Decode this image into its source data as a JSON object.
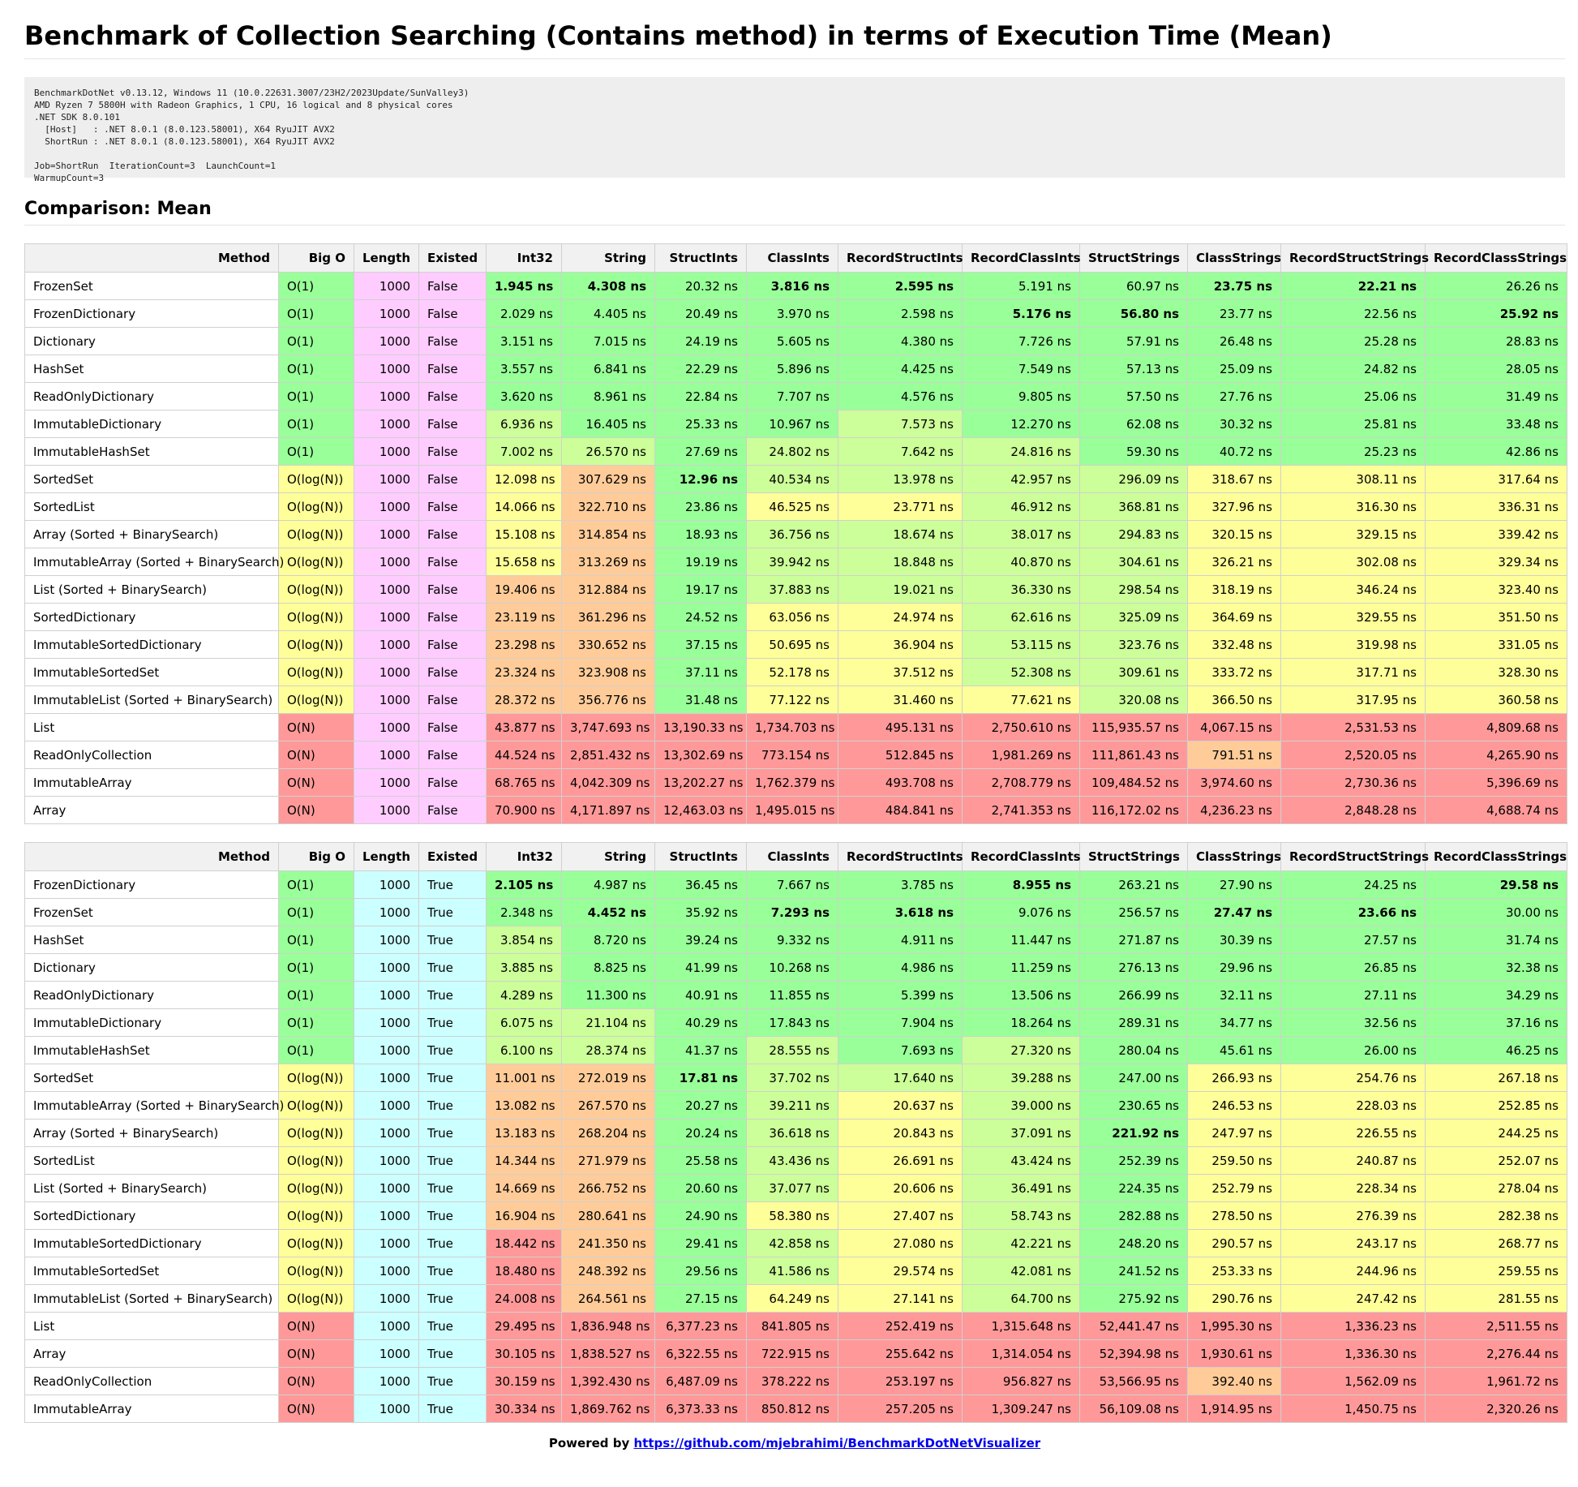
{
  "title": "Benchmark of Collection Searching (Contains method) in terms of Execution Time (Mean)",
  "environment": "BenchmarkDotNet v0.13.12, Windows 11 (10.0.22631.3007/23H2/2023Update/SunValley3)\nAMD Ryzen 7 5800H with Radeon Graphics, 1 CPU, 16 logical and 8 physical cores\n.NET SDK 8.0.101\n  [Host]   : .NET 8.0.1 (8.0.123.58001), X64 RyuJIT AVX2\n  ShortRun : .NET 8.0.1 (8.0.123.58001), X64 RyuJIT AVX2\n\nJob=ShortRun  IterationCount=3  LaunchCount=1\nWarmupCount=3",
  "comparison_heading": "Comparison: Mean",
  "columns": [
    "Method",
    "Big O",
    "Length",
    "Existed",
    "Int32",
    "String",
    "StructInts",
    "ClassInts",
    "RecordStructInts",
    "RecordClassInts",
    "StructStrings",
    "ClassStrings",
    "RecordStructStrings",
    "RecordClassStrings"
  ],
  "colors": {
    "bigo": {
      "O(1)": "#99ff99",
      "O(log(N))": "#ffff99",
      "O(N)": "#ff9999"
    },
    "existed": {
      "False": "#ffccff",
      "True": "#ccffff"
    },
    "length": {
      "False": "#ffccff",
      "True": "#ccffff"
    },
    "scale": [
      "#99ff99",
      "#ccff99",
      "#ffff99",
      "#ffcc99",
      "#ff9999"
    ]
  },
  "footer": {
    "prefix": "Powered by ",
    "link": "https://github.com/mjebrahimi/BenchmarkDotNetVisualizer"
  },
  "tables": [
    {
      "existed": "False",
      "rows": [
        {
          "method": "FrozenSet",
          "bigo": "O(1)",
          "length": "1000",
          "existed": "False",
          "values": [
            "1.945 ns",
            "4.308 ns",
            "20.32 ns",
            "3.816 ns",
            "2.595 ns",
            "5.191 ns",
            "60.97 ns",
            "23.75 ns",
            "22.21 ns",
            "26.26 ns"
          ],
          "best": [
            0,
            1,
            3,
            4,
            7,
            8
          ]
        },
        {
          "method": "FrozenDictionary",
          "bigo": "O(1)",
          "length": "1000",
          "existed": "False",
          "values": [
            "2.029 ns",
            "4.405 ns",
            "20.49 ns",
            "3.970 ns",
            "2.598 ns",
            "5.176 ns",
            "56.80 ns",
            "23.77 ns",
            "22.56 ns",
            "25.92 ns"
          ],
          "best": [
            5,
            6,
            9
          ]
        },
        {
          "method": "Dictionary",
          "bigo": "O(1)",
          "length": "1000",
          "existed": "False",
          "values": [
            "3.151 ns",
            "7.015 ns",
            "24.19 ns",
            "5.605 ns",
            "4.380 ns",
            "7.726 ns",
            "57.91 ns",
            "26.48 ns",
            "25.28 ns",
            "28.83 ns"
          ],
          "best": []
        },
        {
          "method": "HashSet",
          "bigo": "O(1)",
          "length": "1000",
          "existed": "False",
          "values": [
            "3.557 ns",
            "6.841 ns",
            "22.29 ns",
            "5.896 ns",
            "4.425 ns",
            "7.549 ns",
            "57.13 ns",
            "25.09 ns",
            "24.82 ns",
            "28.05 ns"
          ],
          "best": []
        },
        {
          "method": "ReadOnlyDictionary",
          "bigo": "O(1)",
          "length": "1000",
          "existed": "False",
          "values": [
            "3.620 ns",
            "8.961 ns",
            "22.84 ns",
            "7.707 ns",
            "4.576 ns",
            "9.805 ns",
            "57.50 ns",
            "27.76 ns",
            "25.06 ns",
            "31.49 ns"
          ],
          "best": []
        },
        {
          "method": "ImmutableDictionary",
          "bigo": "O(1)",
          "length": "1000",
          "existed": "False",
          "values": [
            "6.936 ns",
            "16.405 ns",
            "25.33 ns",
            "10.967 ns",
            "7.573 ns",
            "12.270 ns",
            "62.08 ns",
            "30.32 ns",
            "25.81 ns",
            "33.48 ns"
          ],
          "best": []
        },
        {
          "method": "ImmutableHashSet",
          "bigo": "O(1)",
          "length": "1000",
          "existed": "False",
          "values": [
            "7.002 ns",
            "26.570 ns",
            "27.69 ns",
            "24.802 ns",
            "7.642 ns",
            "24.816 ns",
            "59.30 ns",
            "40.72 ns",
            "25.23 ns",
            "42.86 ns"
          ],
          "best": []
        },
        {
          "method": "SortedSet",
          "bigo": "O(log(N))",
          "length": "1000",
          "existed": "False",
          "values": [
            "12.098 ns",
            "307.629 ns",
            "12.96 ns",
            "40.534 ns",
            "13.978 ns",
            "42.957 ns",
            "296.09 ns",
            "318.67 ns",
            "308.11 ns",
            "317.64 ns"
          ],
          "best": [
            2
          ]
        },
        {
          "method": "SortedList",
          "bigo": "O(log(N))",
          "length": "1000",
          "existed": "False",
          "values": [
            "14.066 ns",
            "322.710 ns",
            "23.86 ns",
            "46.525 ns",
            "23.771 ns",
            "46.912 ns",
            "368.81 ns",
            "327.96 ns",
            "316.30 ns",
            "336.31 ns"
          ],
          "best": []
        },
        {
          "method": "Array (Sorted + BinarySearch)",
          "bigo": "O(log(N))",
          "length": "1000",
          "existed": "False",
          "values": [
            "15.108 ns",
            "314.854 ns",
            "18.93 ns",
            "36.756 ns",
            "18.674 ns",
            "38.017 ns",
            "294.83 ns",
            "320.15 ns",
            "329.15 ns",
            "339.42 ns"
          ],
          "best": []
        },
        {
          "method": "ImmutableArray (Sorted + BinarySearch)",
          "bigo": "O(log(N))",
          "length": "1000",
          "existed": "False",
          "values": [
            "15.658 ns",
            "313.269 ns",
            "19.19 ns",
            "39.942 ns",
            "18.848 ns",
            "40.870 ns",
            "304.61 ns",
            "326.21 ns",
            "302.08 ns",
            "329.34 ns"
          ],
          "best": []
        },
        {
          "method": "List (Sorted + BinarySearch)",
          "bigo": "O(log(N))",
          "length": "1000",
          "existed": "False",
          "values": [
            "19.406 ns",
            "312.884 ns",
            "19.17 ns",
            "37.883 ns",
            "19.021 ns",
            "36.330 ns",
            "298.54 ns",
            "318.19 ns",
            "346.24 ns",
            "323.40 ns"
          ],
          "best": []
        },
        {
          "method": "SortedDictionary",
          "bigo": "O(log(N))",
          "length": "1000",
          "existed": "False",
          "values": [
            "23.119 ns",
            "361.296 ns",
            "24.52 ns",
            "63.056 ns",
            "24.974 ns",
            "62.616 ns",
            "325.09 ns",
            "364.69 ns",
            "329.55 ns",
            "351.50 ns"
          ],
          "best": []
        },
        {
          "method": "ImmutableSortedDictionary",
          "bigo": "O(log(N))",
          "length": "1000",
          "existed": "False",
          "values": [
            "23.298 ns",
            "330.652 ns",
            "37.15 ns",
            "50.695 ns",
            "36.904 ns",
            "53.115 ns",
            "323.76 ns",
            "332.48 ns",
            "319.98 ns",
            "331.05 ns"
          ],
          "best": []
        },
        {
          "method": "ImmutableSortedSet",
          "bigo": "O(log(N))",
          "length": "1000",
          "existed": "False",
          "values": [
            "23.324 ns",
            "323.908 ns",
            "37.11 ns",
            "52.178 ns",
            "37.512 ns",
            "52.308 ns",
            "309.61 ns",
            "333.72 ns",
            "317.71 ns",
            "328.30 ns"
          ],
          "best": []
        },
        {
          "method": "ImmutableList (Sorted + BinarySearch)",
          "bigo": "O(log(N))",
          "length": "1000",
          "existed": "False",
          "values": [
            "28.372 ns",
            "356.776 ns",
            "31.48 ns",
            "77.122 ns",
            "31.460 ns",
            "77.621 ns",
            "320.08 ns",
            "366.50 ns",
            "317.95 ns",
            "360.58 ns"
          ],
          "best": []
        },
        {
          "method": "List",
          "bigo": "O(N)",
          "length": "1000",
          "existed": "False",
          "values": [
            "43.877 ns",
            "3,747.693 ns",
            "13,190.33 ns",
            "1,734.703 ns",
            "495.131 ns",
            "2,750.610 ns",
            "115,935.57 ns",
            "4,067.15 ns",
            "2,531.53 ns",
            "4,809.68 ns"
          ],
          "best": []
        },
        {
          "method": "ReadOnlyCollection",
          "bigo": "O(N)",
          "length": "1000",
          "existed": "False",
          "values": [
            "44.524 ns",
            "2,851.432 ns",
            "13,302.69 ns",
            "773.154 ns",
            "512.845 ns",
            "1,981.269 ns",
            "111,861.43 ns",
            "791.51 ns",
            "2,520.05 ns",
            "4,265.90 ns"
          ],
          "best": []
        },
        {
          "method": "ImmutableArray",
          "bigo": "O(N)",
          "length": "1000",
          "existed": "False",
          "values": [
            "68.765 ns",
            "4,042.309 ns",
            "13,202.27 ns",
            "1,762.379 ns",
            "493.708 ns",
            "2,708.779 ns",
            "109,484.52 ns",
            "3,974.60 ns",
            "2,730.36 ns",
            "5,396.69 ns"
          ],
          "best": []
        },
        {
          "method": "Array",
          "bigo": "O(N)",
          "length": "1000",
          "existed": "False",
          "values": [
            "70.900 ns",
            "4,171.897 ns",
            "12,463.03 ns",
            "1,495.015 ns",
            "484.841 ns",
            "2,741.353 ns",
            "116,172.02 ns",
            "4,236.23 ns",
            "2,848.28 ns",
            "4,688.74 ns"
          ],
          "best": []
        }
      ]
    },
    {
      "existed": "True",
      "rows": [
        {
          "method": "FrozenDictionary",
          "bigo": "O(1)",
          "length": "1000",
          "existed": "True",
          "values": [
            "2.105 ns",
            "4.987 ns",
            "36.45 ns",
            "7.667 ns",
            "3.785 ns",
            "8.955 ns",
            "263.21 ns",
            "27.90 ns",
            "24.25 ns",
            "29.58 ns"
          ],
          "best": [
            0,
            5,
            9
          ]
        },
        {
          "method": "FrozenSet",
          "bigo": "O(1)",
          "length": "1000",
          "existed": "True",
          "values": [
            "2.348 ns",
            "4.452 ns",
            "35.92 ns",
            "7.293 ns",
            "3.618 ns",
            "9.076 ns",
            "256.57 ns",
            "27.47 ns",
            "23.66 ns",
            "30.00 ns"
          ],
          "best": [
            1,
            3,
            4,
            7,
            8
          ]
        },
        {
          "method": "HashSet",
          "bigo": "O(1)",
          "length": "1000",
          "existed": "True",
          "values": [
            "3.854 ns",
            "8.720 ns",
            "39.24 ns",
            "9.332 ns",
            "4.911 ns",
            "11.447 ns",
            "271.87 ns",
            "30.39 ns",
            "27.57 ns",
            "31.74 ns"
          ],
          "best": []
        },
        {
          "method": "Dictionary",
          "bigo": "O(1)",
          "length": "1000",
          "existed": "True",
          "values": [
            "3.885 ns",
            "8.825 ns",
            "41.99 ns",
            "10.268 ns",
            "4.986 ns",
            "11.259 ns",
            "276.13 ns",
            "29.96 ns",
            "26.85 ns",
            "32.38 ns"
          ],
          "best": []
        },
        {
          "method": "ReadOnlyDictionary",
          "bigo": "O(1)",
          "length": "1000",
          "existed": "True",
          "values": [
            "4.289 ns",
            "11.300 ns",
            "40.91 ns",
            "11.855 ns",
            "5.399 ns",
            "13.506 ns",
            "266.99 ns",
            "32.11 ns",
            "27.11 ns",
            "34.29 ns"
          ],
          "best": []
        },
        {
          "method": "ImmutableDictionary",
          "bigo": "O(1)",
          "length": "1000",
          "existed": "True",
          "values": [
            "6.075 ns",
            "21.104 ns",
            "40.29 ns",
            "17.843 ns",
            "7.904 ns",
            "18.264 ns",
            "289.31 ns",
            "34.77 ns",
            "32.56 ns",
            "37.16 ns"
          ],
          "best": []
        },
        {
          "method": "ImmutableHashSet",
          "bigo": "O(1)",
          "length": "1000",
          "existed": "True",
          "values": [
            "6.100 ns",
            "28.374 ns",
            "41.37 ns",
            "28.555 ns",
            "7.693 ns",
            "27.320 ns",
            "280.04 ns",
            "45.61 ns",
            "26.00 ns",
            "46.25 ns"
          ],
          "best": []
        },
        {
          "method": "SortedSet",
          "bigo": "O(log(N))",
          "length": "1000",
          "existed": "True",
          "values": [
            "11.001 ns",
            "272.019 ns",
            "17.81 ns",
            "37.702 ns",
            "17.640 ns",
            "39.288 ns",
            "247.00 ns",
            "266.93 ns",
            "254.76 ns",
            "267.18 ns"
          ],
          "best": [
            2
          ]
        },
        {
          "method": "ImmutableArray (Sorted + BinarySearch)",
          "bigo": "O(log(N))",
          "length": "1000",
          "existed": "True",
          "values": [
            "13.082 ns",
            "267.570 ns",
            "20.27 ns",
            "39.211 ns",
            "20.637 ns",
            "39.000 ns",
            "230.65 ns",
            "246.53 ns",
            "228.03 ns",
            "252.85 ns"
          ],
          "best": []
        },
        {
          "method": "Array (Sorted + BinarySearch)",
          "bigo": "O(log(N))",
          "length": "1000",
          "existed": "True",
          "values": [
            "13.183 ns",
            "268.204 ns",
            "20.24 ns",
            "36.618 ns",
            "20.843 ns",
            "37.091 ns",
            "221.92 ns",
            "247.97 ns",
            "226.55 ns",
            "244.25 ns"
          ],
          "best": [
            6
          ]
        },
        {
          "method": "SortedList",
          "bigo": "O(log(N))",
          "length": "1000",
          "existed": "True",
          "values": [
            "14.344 ns",
            "271.979 ns",
            "25.58 ns",
            "43.436 ns",
            "26.691 ns",
            "43.424 ns",
            "252.39 ns",
            "259.50 ns",
            "240.87 ns",
            "252.07 ns"
          ],
          "best": []
        },
        {
          "method": "List (Sorted + BinarySearch)",
          "bigo": "O(log(N))",
          "length": "1000",
          "existed": "True",
          "values": [
            "14.669 ns",
            "266.752 ns",
            "20.60 ns",
            "37.077 ns",
            "20.606 ns",
            "36.491 ns",
            "224.35 ns",
            "252.79 ns",
            "228.34 ns",
            "278.04 ns"
          ],
          "best": []
        },
        {
          "method": "SortedDictionary",
          "bigo": "O(log(N))",
          "length": "1000",
          "existed": "True",
          "values": [
            "16.904 ns",
            "280.641 ns",
            "24.90 ns",
            "58.380 ns",
            "27.407 ns",
            "58.743 ns",
            "282.88 ns",
            "278.50 ns",
            "276.39 ns",
            "282.38 ns"
          ],
          "best": []
        },
        {
          "method": "ImmutableSortedDictionary",
          "bigo": "O(log(N))",
          "length": "1000",
          "existed": "True",
          "values": [
            "18.442 ns",
            "241.350 ns",
            "29.41 ns",
            "42.858 ns",
            "27.080 ns",
            "42.221 ns",
            "248.20 ns",
            "290.57 ns",
            "243.17 ns",
            "268.77 ns"
          ],
          "best": []
        },
        {
          "method": "ImmutableSortedSet",
          "bigo": "O(log(N))",
          "length": "1000",
          "existed": "True",
          "values": [
            "18.480 ns",
            "248.392 ns",
            "29.56 ns",
            "41.586 ns",
            "29.574 ns",
            "42.081 ns",
            "241.52 ns",
            "253.33 ns",
            "244.96 ns",
            "259.55 ns"
          ],
          "best": []
        },
        {
          "method": "ImmutableList (Sorted + BinarySearch)",
          "bigo": "O(log(N))",
          "length": "1000",
          "existed": "True",
          "values": [
            "24.008 ns",
            "264.561 ns",
            "27.15 ns",
            "64.249 ns",
            "27.141 ns",
            "64.700 ns",
            "275.92 ns",
            "290.76 ns",
            "247.42 ns",
            "281.55 ns"
          ],
          "best": []
        },
        {
          "method": "List",
          "bigo": "O(N)",
          "length": "1000",
          "existed": "True",
          "values": [
            "29.495 ns",
            "1,836.948 ns",
            "6,377.23 ns",
            "841.805 ns",
            "252.419 ns",
            "1,315.648 ns",
            "52,441.47 ns",
            "1,995.30 ns",
            "1,336.23 ns",
            "2,511.55 ns"
          ],
          "best": []
        },
        {
          "method": "Array",
          "bigo": "O(N)",
          "length": "1000",
          "existed": "True",
          "values": [
            "30.105 ns",
            "1,838.527 ns",
            "6,322.55 ns",
            "722.915 ns",
            "255.642 ns",
            "1,314.054 ns",
            "52,394.98 ns",
            "1,930.61 ns",
            "1,336.30 ns",
            "2,276.44 ns"
          ],
          "best": []
        },
        {
          "method": "ReadOnlyCollection",
          "bigo": "O(N)",
          "length": "1000",
          "existed": "True",
          "values": [
            "30.159 ns",
            "1,392.430 ns",
            "6,487.09 ns",
            "378.222 ns",
            "253.197 ns",
            "956.827 ns",
            "53,566.95 ns",
            "392.40 ns",
            "1,562.09 ns",
            "1,961.72 ns"
          ],
          "best": []
        },
        {
          "method": "ImmutableArray",
          "bigo": "O(N)",
          "length": "1000",
          "existed": "True",
          "values": [
            "30.334 ns",
            "1,869.762 ns",
            "6,373.33 ns",
            "850.812 ns",
            "257.205 ns",
            "1,309.247 ns",
            "56,109.08 ns",
            "1,914.95 ns",
            "1,450.75 ns",
            "2,320.26 ns"
          ],
          "best": []
        }
      ]
    }
  ]
}
